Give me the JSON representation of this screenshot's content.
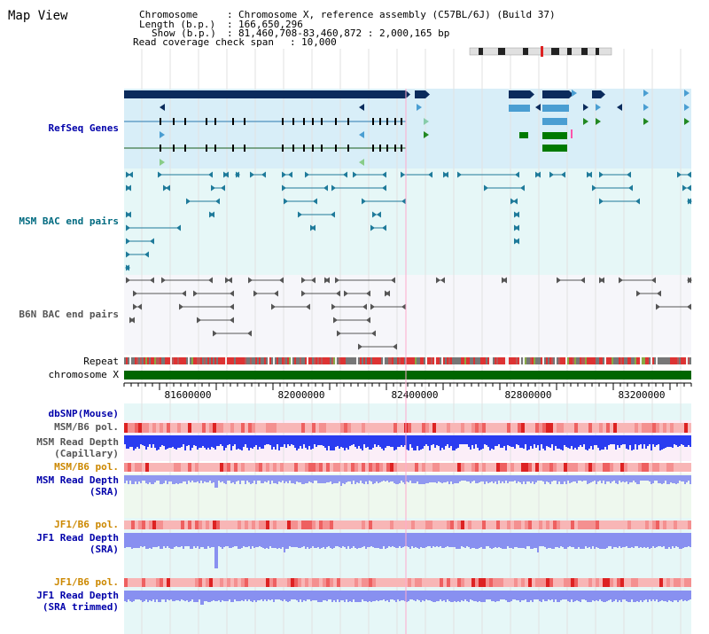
{
  "title": "Map View",
  "info": {
    "chromosome_key": "Chromosome",
    "chromosome_val": "Chromosome X, reference assembly (C57BL/6J) (Build 37)",
    "length_key": "Length (b.p.)",
    "length_val": "166,650,296",
    "show_key": "Show (b.p.)",
    "show_val": "81,460,708-83,460,872 : 2,000,165 bp",
    "span_key": "Read coverage check span",
    "span_val": "10,000"
  },
  "tracks": {
    "refseq": "RefSeq Genes",
    "msm_bac": "MSM BAC end pairs",
    "b6n_bac": "B6N BAC end pairs",
    "repeat": "Repeat",
    "chromosome": "chromosome X",
    "dbsnp": "dbSNP(Mouse)",
    "msm_b6_pol_1": "MSM/B6 pol.",
    "msm_read_cap_1": "MSM Read Depth",
    "msm_read_cap_2": "(Capillary)",
    "msm_b6_pol_2": "MSM/B6 pol.",
    "msm_read_sra_1": "MSM Read Depth",
    "msm_read_sra_2": "(SRA)",
    "jf1_b6_pol_1": "JF1/B6 pol.",
    "jf1_read_sra_1": "JF1 Read Depth",
    "jf1_read_sra_2": "(SRA)",
    "jf1_b6_pol_2": "JF1/B6 pol.",
    "jf1_read_trim_1": "JF1 Read Depth",
    "jf1_read_trim_2": "(SRA trimmed)"
  },
  "axis": {
    "ticks": [
      "81600000",
      "82000000",
      "82400000",
      "82800000",
      "83200000"
    ]
  },
  "colors": {
    "refseq_bg": "#d8eef8",
    "msm_bac_bg": "#e6f7f7",
    "b6n_bac_bg": "#f6f6fa",
    "label_blue": "#0000aa",
    "label_teal": "#006a80",
    "label_gray": "#555555",
    "label_orange": "#cc8800",
    "chrom_green": "#006600"
  }
}
